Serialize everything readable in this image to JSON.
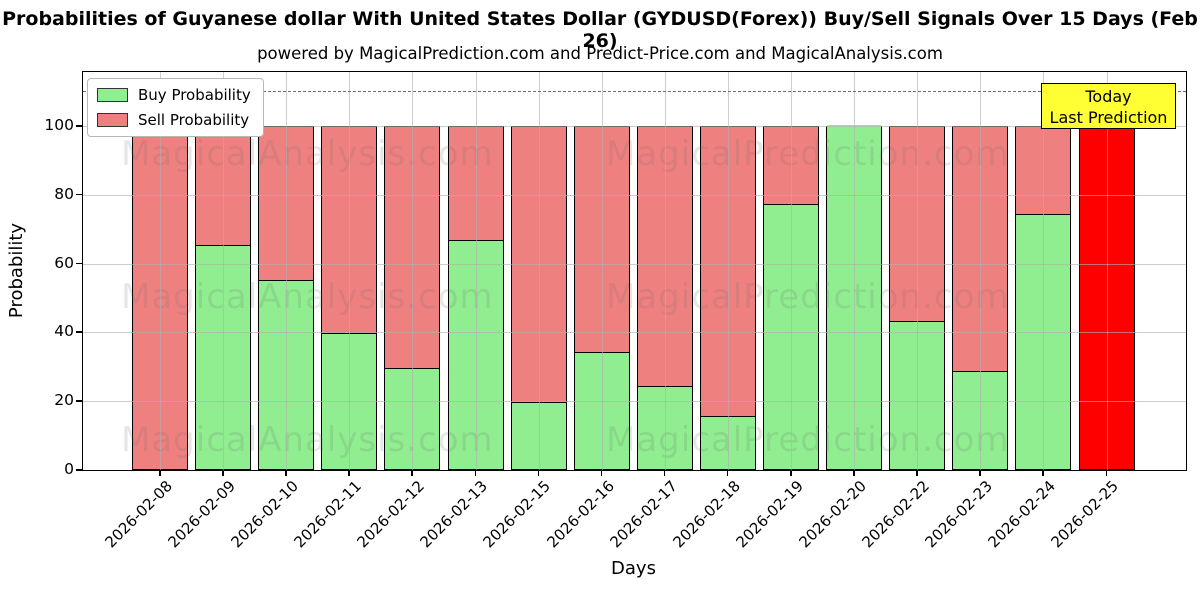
{
  "chart_data": {
    "type": "bar",
    "stacked": true,
    "title": "Probabilities of Guyanese dollar With United States Dollar (GYDUSD(Forex)) Buy/Sell Signals Over 15 Days (Feb 26)",
    "subtitle": "powered by MagicalPrediction.com and Predict-Price.com and MagicalAnalysis.com",
    "xlabel": "Days",
    "ylabel": "Probability",
    "ylim": [
      0,
      115.7
    ],
    "yticks": [
      0,
      20,
      40,
      60,
      80,
      100
    ],
    "grid": true,
    "dashed_hline": 110,
    "categories": [
      "2026-02-08",
      "2026-02-09",
      "2026-02-10",
      "2026-02-11",
      "2026-02-12",
      "2026-02-13",
      "2026-02-15",
      "2026-02-16",
      "2026-02-17",
      "2026-02-18",
      "2026-02-19",
      "2026-02-20",
      "2026-02-22",
      "2026-02-23",
      "2026-02-24",
      "2026-02-25"
    ],
    "series": [
      {
        "name": "Buy Probability",
        "color": "#90ee90",
        "values": [
          0,
          65,
          55,
          39.5,
          29.5,
          66.5,
          19.5,
          34,
          24,
          15.5,
          77,
          100,
          43,
          28.5,
          74,
          0
        ]
      },
      {
        "name": "Sell Probability",
        "color": "#ef8080",
        "values": [
          100,
          35,
          45,
          60.5,
          70.5,
          33.5,
          80.5,
          66,
          76,
          84.5,
          23,
          0,
          57,
          71.5,
          26,
          100
        ]
      }
    ],
    "highlight_bar": {
      "category": "2026-02-25",
      "index": 15,
      "color": "#ff0000",
      "value": 100
    },
    "annotation_box": {
      "line1": "Today",
      "line2": "Last Prediction",
      "bg_color": "#ffff33"
    },
    "legend": {
      "position": "upper left",
      "buy_label": "Buy Probability",
      "sell_label": "Sell Probability"
    },
    "watermark_left": "MagicalAnalysis.com",
    "watermark_right": "MagicalPrediction.com"
  }
}
